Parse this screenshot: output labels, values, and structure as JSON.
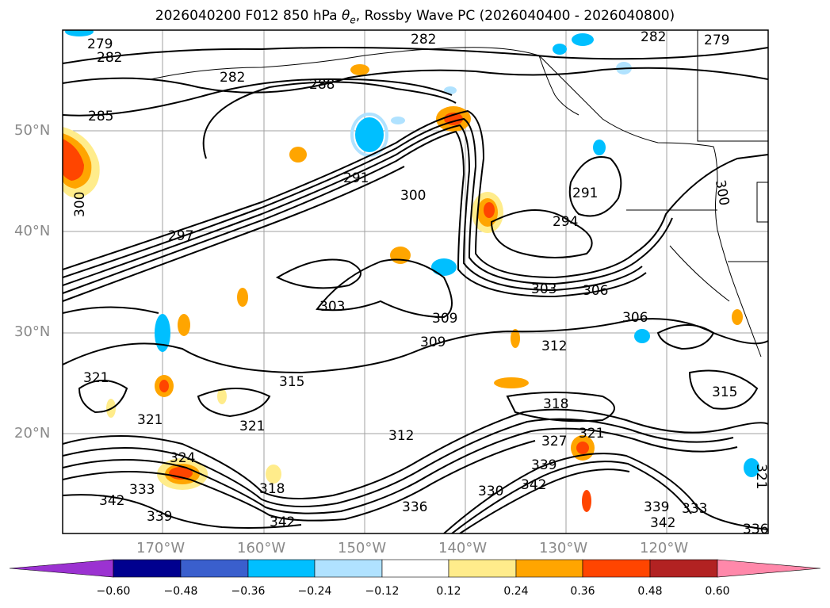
{
  "title_prefix": "2026040200 F012 850 hPa ",
  "title_symbol": "θ",
  "title_subscript": "e",
  "title_suffix": ", Rossby Wave PC (2026040400 - 2026040800)",
  "map": {
    "lat_labels": [
      "50°N",
      "40°N",
      "30°N",
      "20°N"
    ],
    "lon_labels": [
      "170°W",
      "160°W",
      "150°W",
      "140°W",
      "130°W",
      "120°W"
    ],
    "contour_labels": [
      "279",
      "282",
      "282",
      "279",
      "282",
      "282",
      "285",
      "288",
      "291",
      "300",
      "291",
      "294",
      "297",
      "300",
      "300",
      "303",
      "306",
      "303",
      "309",
      "306",
      "309",
      "312",
      "315",
      "315",
      "321",
      "321",
      "318",
      "321",
      "321",
      "324",
      "312",
      "327",
      "333",
      "339",
      "342",
      "318",
      "336",
      "330",
      "342",
      "339",
      "342",
      "333",
      "336",
      "342",
      "339",
      "321"
    ]
  },
  "colorbar": {
    "ticks": [
      "−0.60",
      "−0.48",
      "−0.36",
      "−0.24",
      "−0.12",
      "0.12",
      "0.24",
      "0.36",
      "0.48",
      "0.60"
    ],
    "colors": [
      "#9b32d1",
      "#00008f",
      "#3a5fcd",
      "#00bfff",
      "#b0e2ff",
      "#ffffff",
      "#ffec8b",
      "#ffa500",
      "#ff4500",
      "#b22222",
      "#ff88aa"
    ]
  }
}
